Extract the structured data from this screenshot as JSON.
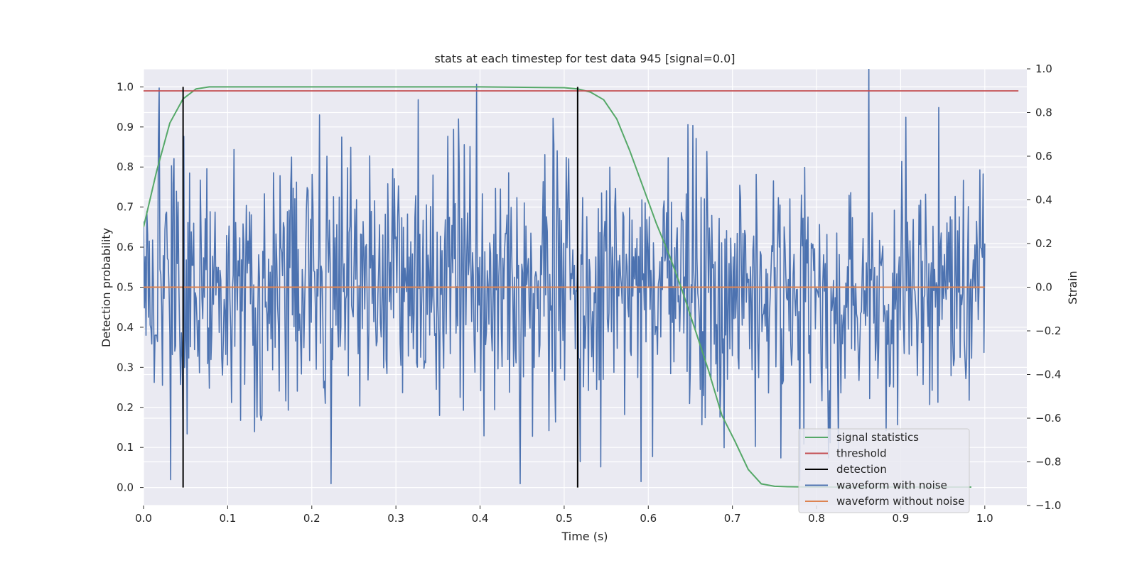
{
  "chart_data": {
    "type": "line",
    "title": "stats at each timestep for test data 945 [signal=0.0]",
    "xlabel": "Time (s)",
    "ylabel": "Detection probability",
    "y2label": "Strain",
    "xlim": [
      0.0,
      1.05
    ],
    "ylim": [
      -0.045,
      1.045
    ],
    "y2lim": [
      -1.0,
      1.0
    ],
    "xticks": [
      "0.0",
      "0.1",
      "0.2",
      "0.3",
      "0.4",
      "0.5",
      "0.6",
      "0.7",
      "0.8",
      "0.9",
      "1.0"
    ],
    "yticks": [
      "0.0",
      "0.1",
      "0.2",
      "0.3",
      "0.4",
      "0.5",
      "0.6",
      "0.7",
      "0.8",
      "0.9",
      "1.0"
    ],
    "y2ticks": [
      "−1.0",
      "−0.8",
      "−0.6",
      "−0.4",
      "−0.2",
      "0.0",
      "0.2",
      "0.4",
      "0.6",
      "0.8",
      "1.0"
    ],
    "grid": true,
    "legend_position": "lower-right",
    "colors": {
      "background": "#eaeaf2",
      "grid": "#ffffff",
      "signal_statistics": "#55a868",
      "threshold": "#c44e52",
      "detection": "#000000",
      "waveform_with_noise": "#4c72b0",
      "waveform_without_noise": "#dd8452"
    },
    "legend": [
      {
        "label": "signal statistics",
        "color": "#55a868"
      },
      {
        "label": "threshold",
        "color": "#c44e52"
      },
      {
        "label": "detection",
        "color": "#000000"
      },
      {
        "label": "waveform with noise",
        "color": "#4c72b0"
      },
      {
        "label": "waveform without noise",
        "color": "#dd8452"
      }
    ],
    "threshold": {
      "y": 0.99,
      "x": [
        0.0,
        1.05
      ]
    },
    "detections": [
      {
        "x": 0.047,
        "y": [
          0.0,
          1.0
        ]
      },
      {
        "x": 0.516,
        "y": [
          0.0,
          1.0
        ]
      }
    ],
    "waveform_without_noise": {
      "x": [
        0.0,
        1.0
      ],
      "y": [
        0.0,
        0.0
      ]
    },
    "waveform_with_noise": {
      "x_range": [
        0.0,
        1.0
      ],
      "n_points": 1024,
      "seed": 945,
      "y_range": [
        -0.9,
        1.0
      ],
      "peak": {
        "x": 0.862,
        "y": 1.0
      },
      "trough": {
        "x": 0.448,
        "y": -0.9
      }
    },
    "signal_statistics": {
      "x": [
        0.0,
        0.0156,
        0.0313,
        0.0469,
        0.0625,
        0.0781,
        0.1,
        0.2,
        0.3,
        0.4,
        0.5,
        0.516,
        0.5313,
        0.5469,
        0.5625,
        0.5781,
        0.5938,
        0.6094,
        0.625,
        0.6406,
        0.6563,
        0.6719,
        0.6875,
        0.7031,
        0.7188,
        0.7344,
        0.75,
        0.7656,
        0.8,
        0.9,
        0.984
      ],
      "y": [
        0.65,
        0.79,
        0.91,
        0.97,
        0.995,
        1.0,
        1.0,
        1.0,
        1.0,
        1.0,
        0.998,
        0.995,
        0.987,
        0.968,
        0.92,
        0.84,
        0.75,
        0.66,
        0.58,
        0.49,
        0.39,
        0.29,
        0.18,
        0.115,
        0.045,
        0.009,
        0.003,
        0.002,
        0.001,
        0.001,
        0.001
      ]
    }
  }
}
